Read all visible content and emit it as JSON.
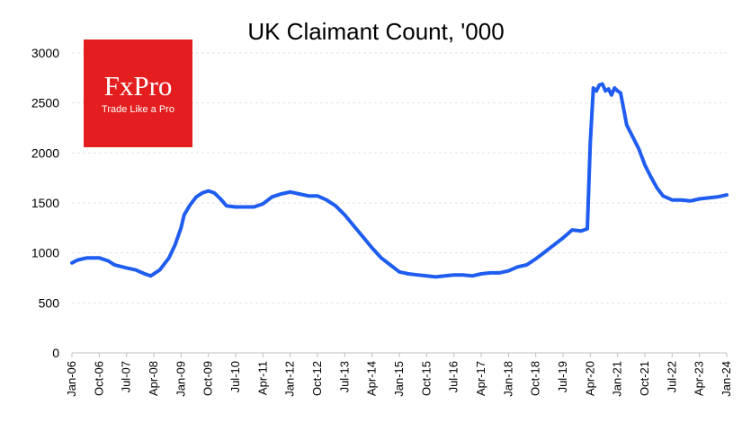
{
  "logo": {
    "name": "FxPro",
    "tagline": "Trade Like a Pro",
    "color": "#e41e1e"
  },
  "chart_data": {
    "type": "line",
    "title": "UK Claimant Count, '000",
    "xlabel": "",
    "ylabel": "",
    "ylim": [
      0,
      3000
    ],
    "yticks": [
      0,
      500,
      1000,
      1500,
      2000,
      2500,
      3000
    ],
    "xticks": [
      "Jan-06",
      "Oct-06",
      "Jul-07",
      "Apr-08",
      "Jan-09",
      "Oct-09",
      "Jul-10",
      "Apr-11",
      "Jan-12",
      "Oct-12",
      "Jul-13",
      "Apr-14",
      "Jan-15",
      "Oct-15",
      "Jul-16",
      "Apr-17",
      "Jan-18",
      "Oct-18",
      "Jul-19",
      "Apr-20",
      "Jan-21",
      "Oct-21",
      "Jul-22",
      "Apr-23",
      "Jan-24"
    ],
    "grid": true,
    "legend": "none",
    "series": [
      {
        "color": "#1f5cf0",
        "points": [
          [
            "Jan-06",
            900
          ],
          [
            "Mar-06",
            930
          ],
          [
            "Jun-06",
            950
          ],
          [
            "Oct-06",
            950
          ],
          [
            "Jan-07",
            920
          ],
          [
            "Mar-07",
            880
          ],
          [
            "Jul-07",
            850
          ],
          [
            "Oct-07",
            830
          ],
          [
            "Jan-08",
            790
          ],
          [
            "Mar-08",
            770
          ],
          [
            "Jun-08",
            830
          ],
          [
            "Sep-08",
            950
          ],
          [
            "Nov-08",
            1080
          ],
          [
            "Jan-09",
            1250
          ],
          [
            "Feb-09",
            1380
          ],
          [
            "Apr-09",
            1480
          ],
          [
            "Jun-09",
            1560
          ],
          [
            "Aug-09",
            1600
          ],
          [
            "Oct-09",
            1620
          ],
          [
            "Dec-09",
            1600
          ],
          [
            "Feb-10",
            1540
          ],
          [
            "Apr-10",
            1470
          ],
          [
            "Jul-10",
            1460
          ],
          [
            "Oct-10",
            1460
          ],
          [
            "Jan-11",
            1460
          ],
          [
            "Apr-11",
            1490
          ],
          [
            "Jul-11",
            1560
          ],
          [
            "Oct-11",
            1590
          ],
          [
            "Jan-12",
            1610
          ],
          [
            "Apr-12",
            1590
          ],
          [
            "Jul-12",
            1570
          ],
          [
            "Oct-12",
            1570
          ],
          [
            "Jan-13",
            1530
          ],
          [
            "Apr-13",
            1470
          ],
          [
            "Jul-13",
            1380
          ],
          [
            "Oct-13",
            1270
          ],
          [
            "Jan-14",
            1160
          ],
          [
            "Apr-14",
            1050
          ],
          [
            "Jul-14",
            950
          ],
          [
            "Oct-14",
            880
          ],
          [
            "Jan-15",
            810
          ],
          [
            "Apr-15",
            790
          ],
          [
            "Jul-15",
            780
          ],
          [
            "Oct-15",
            770
          ],
          [
            "Jan-16",
            760
          ],
          [
            "Apr-16",
            770
          ],
          [
            "Jul-16",
            780
          ],
          [
            "Oct-16",
            780
          ],
          [
            "Jan-17",
            770
          ],
          [
            "Apr-17",
            790
          ],
          [
            "Jul-17",
            800
          ],
          [
            "Oct-17",
            800
          ],
          [
            "Jan-18",
            820
          ],
          [
            "Apr-18",
            860
          ],
          [
            "Jul-18",
            880
          ],
          [
            "Oct-18",
            940
          ],
          [
            "Jan-19",
            1010
          ],
          [
            "Apr-19",
            1080
          ],
          [
            "Jul-19",
            1150
          ],
          [
            "Oct-19",
            1230
          ],
          [
            "Jan-20",
            1220
          ],
          [
            "Mar-20",
            1240
          ],
          [
            "Apr-20",
            2100
          ],
          [
            "May-20",
            2650
          ],
          [
            "Jun-20",
            2620
          ],
          [
            "Jul-20",
            2680
          ],
          [
            "Aug-20",
            2690
          ],
          [
            "Sep-20",
            2620
          ],
          [
            "Oct-20",
            2640
          ],
          [
            "Nov-20",
            2580
          ],
          [
            "Dec-20",
            2650
          ],
          [
            "Jan-21",
            2620
          ],
          [
            "Feb-21",
            2600
          ],
          [
            "Apr-21",
            2280
          ],
          [
            "Jun-21",
            2160
          ],
          [
            "Aug-21",
            2040
          ],
          [
            "Oct-21",
            1880
          ],
          [
            "Dec-21",
            1760
          ],
          [
            "Feb-22",
            1650
          ],
          [
            "Apr-22",
            1570
          ],
          [
            "Jul-22",
            1530
          ],
          [
            "Oct-22",
            1530
          ],
          [
            "Jan-23",
            1520
          ],
          [
            "Apr-23",
            1540
          ],
          [
            "Jul-23",
            1550
          ],
          [
            "Oct-23",
            1560
          ],
          [
            "Jan-24",
            1580
          ]
        ]
      }
    ]
  }
}
